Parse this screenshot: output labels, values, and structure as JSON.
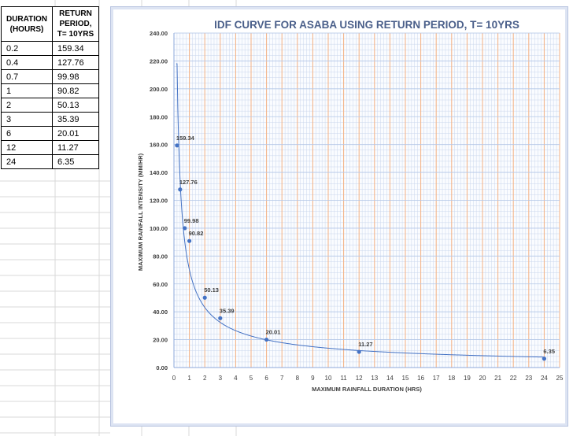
{
  "table": {
    "headers": [
      "DURATION\n(HOURS)",
      "RETURN\nPERIOD,\nT= 10YRS"
    ],
    "rows": [
      [
        "0.2",
        "159.34"
      ],
      [
        "0.4",
        "127.76"
      ],
      [
        "0.7",
        "99.98"
      ],
      [
        "1",
        "90.82"
      ],
      [
        "2",
        "50.13"
      ],
      [
        "3",
        "35.39"
      ],
      [
        "6",
        "20.01"
      ],
      [
        "12",
        "11.27"
      ],
      [
        "24",
        "6.35"
      ]
    ]
  },
  "chart_data": {
    "type": "scatter",
    "title": "IDF CURVE FOR ASABA USING RETURN PERIOD,  T= 10YRS",
    "xlabel": "MAXIMUM RAINFALL DURATION (HRS)",
    "ylabel": "MAXIMUM RAINFALL INTENSITY (MM/HR)",
    "xlim": [
      0,
      25
    ],
    "ylim": [
      0,
      240
    ],
    "x_ticks": [
      "0",
      "1",
      "2",
      "3",
      "4",
      "5",
      "6",
      "7",
      "8",
      "9",
      "10",
      "11",
      "12",
      "13",
      "14",
      "15",
      "16",
      "17",
      "18",
      "19",
      "20",
      "21",
      "22",
      "23",
      "24",
      "25"
    ],
    "y_ticks": [
      "0.00",
      "20.00",
      "40.00",
      "60.00",
      "80.00",
      "100.00",
      "120.00",
      "140.00",
      "160.00",
      "180.00",
      "200.00",
      "220.00",
      "240.00"
    ],
    "grid": true,
    "trendline": "power",
    "points": [
      {
        "x": 0.2,
        "y": 159.34,
        "label": "159.34"
      },
      {
        "x": 0.4,
        "y": 127.76,
        "label": "127.76"
      },
      {
        "x": 0.7,
        "y": 99.98,
        "label": "99.98"
      },
      {
        "x": 1,
        "y": 90.82,
        "label": "90.82"
      },
      {
        "x": 2,
        "y": 50.13,
        "label": "50.13"
      },
      {
        "x": 3,
        "y": 35.39,
        "label": "35.39"
      },
      {
        "x": 6,
        "y": 20.01,
        "label": "20.01"
      },
      {
        "x": 12,
        "y": 11.27,
        "label": "11.27"
      },
      {
        "x": 24,
        "y": 6.35,
        "label": "6.35"
      }
    ],
    "colors": {
      "marker": "#4472c4",
      "trend": "#4472c4",
      "major_grid_v": "#f4b183",
      "minor_grid": "#c9d6ec",
      "major_grid_h": "#b4c7e7"
    }
  }
}
